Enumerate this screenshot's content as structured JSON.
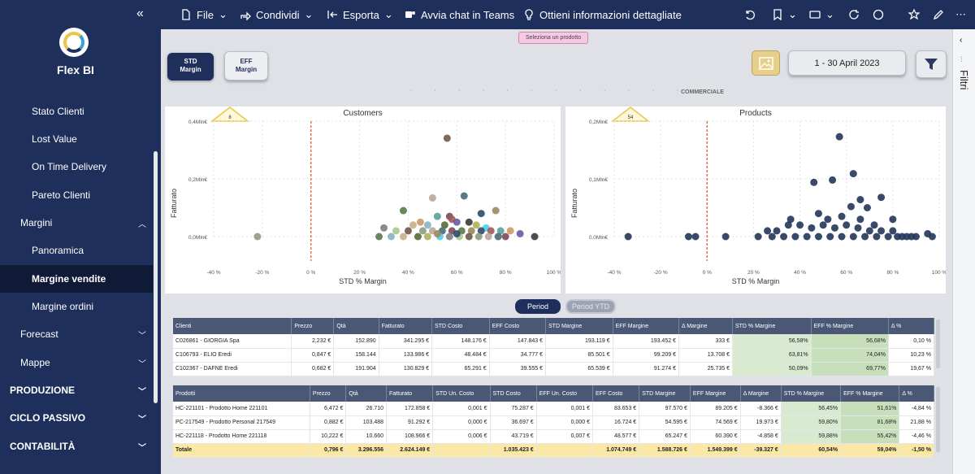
{
  "sidebar": {
    "brand": "Flex BI",
    "items": [
      {
        "label": "Stato Clienti"
      },
      {
        "label": "Lost Value"
      },
      {
        "label": "On Time Delivery"
      },
      {
        "label": "Pareto Clienti"
      },
      {
        "label": "Margini"
      },
      {
        "label": "Panoramica"
      },
      {
        "label": "Margine vendite"
      },
      {
        "label": "Margine ordini"
      },
      {
        "label": "Forecast"
      },
      {
        "label": "Mappe"
      },
      {
        "label": "PRODUZIONE"
      },
      {
        "label": "CICLO PASSIVO"
      },
      {
        "label": "CONTABILITÀ"
      }
    ]
  },
  "toolbar": {
    "file": "File",
    "share": "Condividi",
    "export": "Esporta",
    "teams": "Avvia chat in Teams",
    "insights": "Ottieni informazioni dettagliate"
  },
  "right_panel": {
    "label": "Filtri"
  },
  "report": {
    "hint": "Seleziona un prodotto",
    "std_btn": "STD Margin",
    "eff_btn": "EFF Margin",
    "date": "1 - 30 April 2023",
    "section": "COMMERCIALE",
    "period": "Period",
    "period_ytd": "Period YTD"
  },
  "chart_data": [
    {
      "type": "scatter",
      "title": "Customers",
      "xlabel": "STD % Margin",
      "ylabel": "Fatturato",
      "badge": "8",
      "xlim": [
        -40,
        100
      ],
      "ylim": [
        0,
        0.4
      ],
      "x_ticks": [
        "-40 %",
        "-20 %",
        "0 %",
        "20 %",
        "40 %",
        "60 %",
        "80 %",
        "100 %"
      ],
      "y_ticks": [
        "0,0Mln€",
        "0,2Mln€",
        "0,4Mln€"
      ],
      "ref_line_x": 0,
      "points": [
        [
          56,
          0.341
        ],
        [
          -22,
          0.0
        ],
        [
          50,
          0.134
        ],
        [
          63,
          0.141
        ],
        [
          57,
          0.07
        ],
        [
          38,
          0.09
        ],
        [
          76,
          0.09
        ],
        [
          70,
          0.08
        ],
        [
          58,
          0.06
        ],
        [
          52,
          0.07
        ],
        [
          45,
          0.05
        ],
        [
          60,
          0.05
        ],
        [
          65,
          0.05
        ],
        [
          48,
          0.04
        ],
        [
          42,
          0.04
        ],
        [
          55,
          0.04
        ],
        [
          68,
          0.04
        ],
        [
          72,
          0.03
        ],
        [
          30,
          0.03
        ],
        [
          35,
          0.02
        ],
        [
          40,
          0.02
        ],
        [
          46,
          0.02
        ],
        [
          50,
          0.02
        ],
        [
          54,
          0.02
        ],
        [
          58,
          0.02
        ],
        [
          62,
          0.02
        ],
        [
          66,
          0.02
        ],
        [
          70,
          0.02
        ],
        [
          74,
          0.02
        ],
        [
          78,
          0.02
        ],
        [
          82,
          0.02
        ],
        [
          86,
          0.01
        ],
        [
          92,
          0.0
        ],
        [
          33,
          0.0
        ],
        [
          38,
          0.0
        ],
        [
          44,
          0.0
        ],
        [
          48,
          0.0
        ],
        [
          53,
          0.0
        ],
        [
          57,
          0.0
        ],
        [
          61,
          0.0
        ],
        [
          65,
          0.0
        ],
        [
          69,
          0.0
        ],
        [
          73,
          0.0
        ],
        [
          77,
          0.0
        ],
        [
          80,
          0.0
        ],
        [
          28,
          0.0
        ],
        [
          52,
          0.01
        ],
        [
          60,
          0.01
        ]
      ]
    },
    {
      "type": "scatter",
      "title": "Products",
      "xlabel": "STD % Margin",
      "ylabel": "Fatturato",
      "badge": "54",
      "xlim": [
        -40,
        100
      ],
      "ylim": [
        0,
        0.2
      ],
      "x_ticks": [
        "-40 %",
        "-20 %",
        "0 %",
        "20 %",
        "40 %",
        "60 %",
        "80 %",
        "100 %"
      ],
      "y_ticks": [
        "0,0Mln€",
        "0,1Mln€",
        "0,2Mln€"
      ],
      "ref_line_x": 0,
      "points": [
        [
          57,
          0.173
        ],
        [
          63,
          0.109
        ],
        [
          54,
          0.098
        ],
        [
          46,
          0.094
        ],
        [
          66,
          0.064
        ],
        [
          75,
          0.068
        ],
        [
          62,
          0.052
        ],
        [
          69,
          0.05
        ],
        [
          48,
          0.04
        ],
        [
          80,
          0.03
        ],
        [
          -34,
          0.0
        ],
        [
          -5,
          0.0
        ],
        [
          -8,
          0.0
        ],
        [
          8,
          0.0
        ],
        [
          22,
          0.0
        ],
        [
          88,
          0.0
        ],
        [
          95,
          0.005
        ],
        [
          97,
          0.0
        ],
        [
          26,
          0.01
        ],
        [
          30,
          0.01
        ],
        [
          35,
          0.02
        ],
        [
          40,
          0.02
        ],
        [
          45,
          0.015
        ],
        [
          50,
          0.02
        ],
        [
          55,
          0.015
        ],
        [
          60,
          0.02
        ],
        [
          65,
          0.015
        ],
        [
          70,
          0.01
        ],
        [
          75,
          0.01
        ],
        [
          80,
          0.01
        ],
        [
          84,
          0.0
        ],
        [
          28,
          0.0
        ],
        [
          33,
          0.0
        ],
        [
          38,
          0.0
        ],
        [
          43,
          0.0
        ],
        [
          48,
          0.0
        ],
        [
          53,
          0.0
        ],
        [
          58,
          0.0
        ],
        [
          63,
          0.0
        ],
        [
          68,
          0.0
        ],
        [
          73,
          0.0
        ],
        [
          78,
          0.0
        ],
        [
          82,
          0.0
        ],
        [
          86,
          0.0
        ],
        [
          90,
          0.0
        ],
        [
          36,
          0.03
        ],
        [
          52,
          0.03
        ],
        [
          58,
          0.035
        ],
        [
          66,
          0.03
        ],
        [
          72,
          0.02
        ]
      ]
    }
  ],
  "clienti_table": {
    "headers": [
      "Clienti",
      "Prezzo",
      "Qtà",
      "Fatturato",
      "STD Costo",
      "EFF Costo",
      "STD Margine",
      "EFF Margine",
      "Δ Margine",
      "STD % Margine",
      "EFF % Margine",
      "Δ %"
    ],
    "rows": [
      [
        "C026861 - GIORGIA Spa",
        "2,232 €",
        "152.890",
        "341.295 €",
        "148.176 €",
        "147.843 €",
        "193.119 €",
        "193.452 €",
        "333 €",
        "56,58%",
        "56,68%",
        "0,10 %"
      ],
      [
        "C106793 - ELIO Eredi",
        "0,847 €",
        "158.144",
        "133.986 €",
        "48.484 €",
        "34.777 €",
        "85.501 €",
        "99.209 €",
        "13.708 €",
        "63,81%",
        "74,04%",
        "10,23 %"
      ],
      [
        "C102367 - DAFNE Eredi",
        "0,682 €",
        "191.904",
        "130.829 €",
        "65.291 €",
        "39.555 €",
        "65.539 €",
        "91.274 €",
        "25.735 €",
        "50,09%",
        "69,77%",
        "19,67 %"
      ]
    ]
  },
  "prodotti_table": {
    "headers": [
      "Prodotti",
      "Prezzo",
      "Qtà",
      "Fatturato",
      "STD Un. Costo",
      "STD Costo",
      "EFF Un. Costo",
      "EFF Costo",
      "STD Margine",
      "EFF Margine",
      "Δ Margine",
      "STD % Margine",
      "EFF % Margine",
      "Δ %"
    ],
    "rows": [
      [
        "HC-221101 - Prodotto Home 221101",
        "6,472 €",
        "26.710",
        "172.858 €",
        "0,001 €",
        "75.287 €",
        "0,001 €",
        "83.653 €",
        "97.570 €",
        "89.205 €",
        "-8.366 €",
        "56,45%",
        "51,61%",
        "-4,84 %"
      ],
      [
        "PC-217549 - Prodotto Personal 217549",
        "0,882 €",
        "103.488",
        "91.292 €",
        "0,000 €",
        "36.697 €",
        "0,000 €",
        "16.724 €",
        "54.595 €",
        "74.569 €",
        "19.973 €",
        "59,80%",
        "81,68%",
        "21,88 %"
      ],
      [
        "HC-221118 - Prodotto Home 221118",
        "10,222 €",
        "10.660",
        "108.966 €",
        "0,006 €",
        "43.719 €",
        "0,007 €",
        "48.577 €",
        "65.247 €",
        "60.390 €",
        "-4.858 €",
        "59,88%",
        "55,42%",
        "-4,46 %"
      ]
    ],
    "total": [
      "Totale",
      "0,796 €",
      "3.296.556",
      "2.624.149 €",
      "",
      "1.035.423 €",
      "",
      "1.074.749 €",
      "1.588.726 €",
      "1.549.399 €",
      "-39.327 €",
      "60,54%",
      "59,04%",
      "-1,50 %"
    ]
  }
}
